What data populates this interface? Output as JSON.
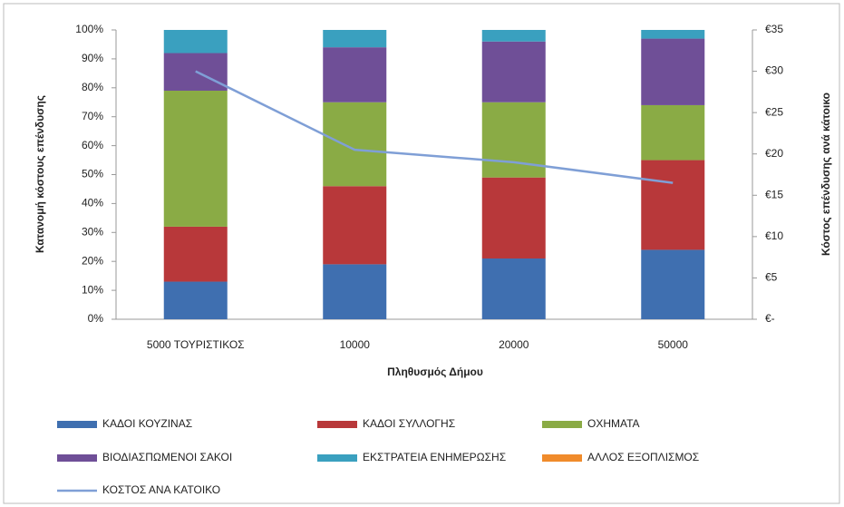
{
  "chart_data": {
    "type": "bar",
    "stacked": true,
    "y_label": "Κατανομή κόστους επένδυσης",
    "y2_label": "Κόστος επένδυσης ανά κάτοικο",
    "x_label": "Πληθυσμός Δήμου",
    "categories": [
      "5000 ΤΟΥΡΙΣΤΙΚΟΣ",
      "10000",
      "20000",
      "50000"
    ],
    "series": [
      {
        "name": "ΚΑΔΟΙ ΚΟΥΖΙΝΑΣ",
        "color": "#3f6fb0",
        "values": [
          13,
          19,
          21,
          24
        ]
      },
      {
        "name": "ΚΑΔΟΙ ΣΥΛΛΟΓΗΣ",
        "color": "#b8383a",
        "values": [
          19,
          27,
          28,
          31
        ]
      },
      {
        "name": "ΟΧΗΜΑΤΑ",
        "color": "#8aab45",
        "values": [
          47,
          29,
          26,
          19
        ]
      },
      {
        "name": "ΒΙΟΔΙΑΣΠΩΜΕΝΟΙ ΣΑΚΟΙ",
        "color": "#6f4f97",
        "values": [
          13,
          19,
          21,
          23
        ]
      },
      {
        "name": "ΕΚΣΤΡΑΤΕΙΑ ΕΝΗΜΕΡΩΣΗΣ",
        "color": "#3aa0bf",
        "values": [
          8,
          6,
          4,
          3
        ]
      },
      {
        "name": "ΑΛΛΟΣ ΕΞΟΠΛΙΣΜΟΣ",
        "color": "#f08b2b",
        "values": [
          0,
          0,
          0,
          0
        ]
      },
      {
        "name": "ΚΟΣΤΟΣ ΑΝΑ ΚΑΤΟΙΚΟ",
        "color": "#7f9fd6",
        "type": "line",
        "axis": "y2",
        "values": [
          30,
          20.5,
          19,
          16.5
        ]
      }
    ],
    "ylim": [
      0,
      100
    ],
    "yticks": [
      {
        "value": 0,
        "label": "0%"
      },
      {
        "value": 10,
        "label": "10%"
      },
      {
        "value": 20,
        "label": "20%"
      },
      {
        "value": 30,
        "label": "30%"
      },
      {
        "value": 40,
        "label": "40%"
      },
      {
        "value": 50,
        "label": "50%"
      },
      {
        "value": 60,
        "label": "60%"
      },
      {
        "value": 70,
        "label": "70%"
      },
      {
        "value": 80,
        "label": "80%"
      },
      {
        "value": 90,
        "label": "90%"
      },
      {
        "value": 100,
        "label": "100%"
      }
    ],
    "y2lim": [
      0,
      35
    ],
    "y2ticks": [
      {
        "value": 0,
        "label": "€-"
      },
      {
        "value": 5,
        "label": "€5"
      },
      {
        "value": 10,
        "label": "€10"
      },
      {
        "value": 15,
        "label": "€15"
      },
      {
        "value": 20,
        "label": "€20"
      },
      {
        "value": 25,
        "label": "€25"
      },
      {
        "value": 30,
        "label": "€30"
      },
      {
        "value": 35,
        "label": "€35"
      }
    ],
    "legend": "bottom"
  }
}
